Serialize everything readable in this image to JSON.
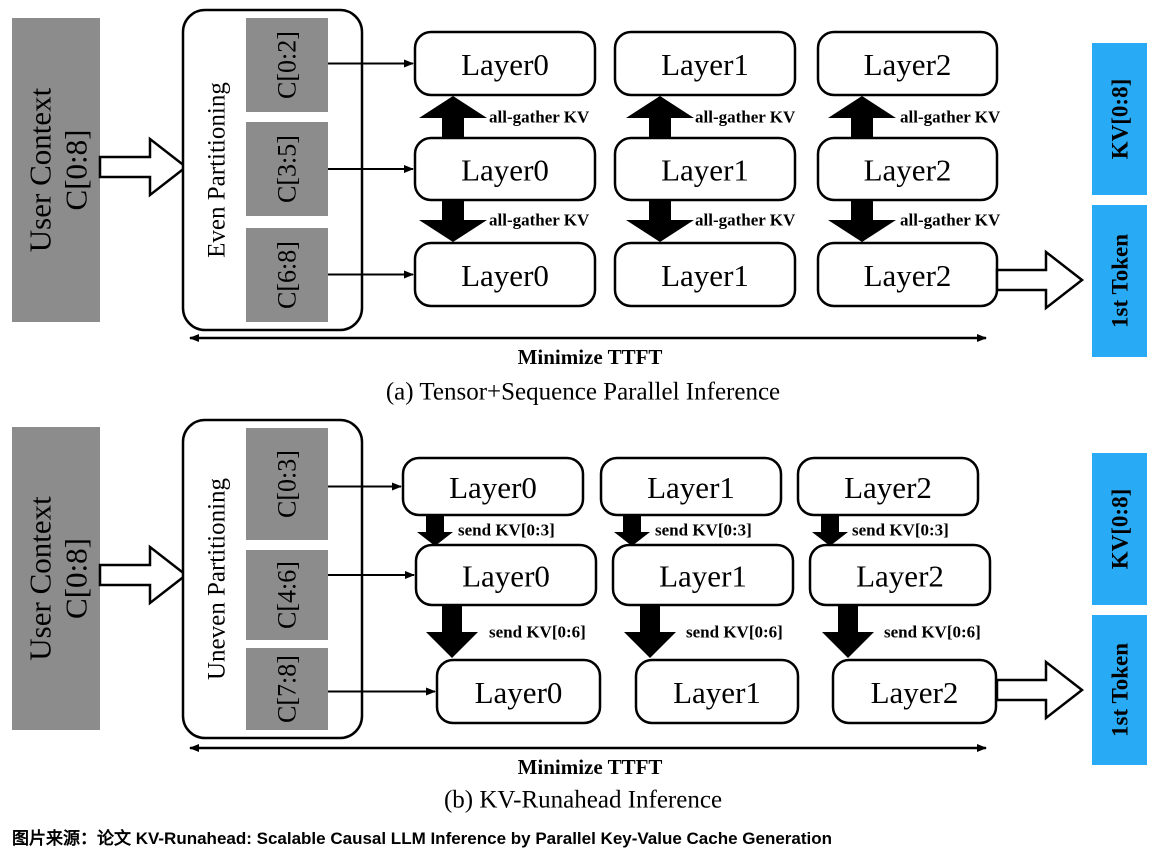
{
  "colors": {
    "context_gray": "#8c8c8c",
    "output_blue": "#29aaf4",
    "stroke": "#000000"
  },
  "panel_a": {
    "user_context": [
      "User Context",
      "C[0:8]"
    ],
    "partition_label": "Even Partitioning",
    "chunks": [
      "C[0:2]",
      "C[3:5]",
      "C[6:8]"
    ],
    "layers": [
      [
        "Layer0",
        "Layer1",
        "Layer2"
      ],
      [
        "Layer0",
        "Layer1",
        "Layer2"
      ],
      [
        "Layer0",
        "Layer1",
        "Layer2"
      ]
    ],
    "comm_labels": [
      "all-gather KV",
      "all-gather KV"
    ],
    "ttft_label": "Minimize TTFT",
    "caption": "(a)  Tensor+Sequence Parallel Inference",
    "outputs": [
      "KV[0:8]",
      "1st Token"
    ]
  },
  "panel_b": {
    "user_context": [
      "User Context",
      "C[0:8]"
    ],
    "partition_label": "Uneven Partitioning",
    "chunks": [
      "C[0:3]",
      "C[4:6]",
      "C[7:8]"
    ],
    "layers": [
      [
        "Layer0",
        "Layer1",
        "Layer2"
      ],
      [
        "Layer0",
        "Layer1",
        "Layer2"
      ],
      [
        "Layer0",
        "Layer1",
        "Layer2"
      ]
    ],
    "comm_labels": [
      "send KV[0:3]",
      "send KV[0:6]"
    ],
    "ttft_label": "Minimize TTFT",
    "caption": "(b)  KV-Runahead Inference",
    "outputs": [
      "KV[0:8]",
      "1st Token"
    ]
  },
  "footer": "图片来源：论文 KV-Runahead: Scalable Causal LLM Inference by Parallel Key-Value Cache Generation"
}
